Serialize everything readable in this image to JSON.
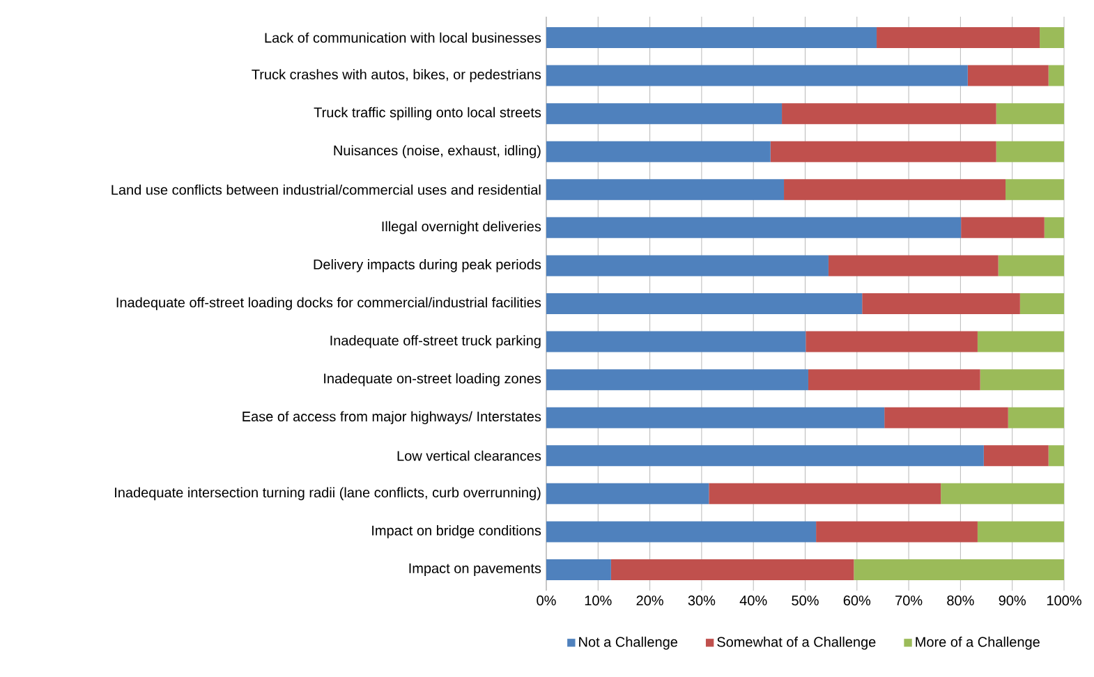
{
  "chart_data": {
    "type": "bar",
    "orientation": "horizontal",
    "stacked": true,
    "categories": [
      "Lack of communication with local businesses",
      "Truck crashes with autos, bikes, or pedestrians",
      "Truck traffic spilling onto local streets",
      "Nuisances (noise, exhaust, idling)",
      "Land use conflicts between industrial/commercial uses and residential",
      "Illegal overnight deliveries",
      "Delivery impacts during peak periods",
      "Inadequate off-street loading docks for commercial/industrial facilities",
      "Inadequate off-street truck parking",
      "Inadequate on-street loading zones",
      "Ease of access from major highways/ Interstates",
      "Low vertical clearances",
      "Inadequate intersection turning radii (lane conflicts, curb overrunning)",
      "Impact on bridge conditions",
      "Impact on pavements"
    ],
    "series": [
      {
        "name": "Not a Challenge",
        "color": "#4f81bd",
        "values": [
          63.8,
          81.4,
          45.5,
          43.3,
          45.9,
          80.1,
          54.5,
          61.0,
          50.1,
          50.6,
          65.3,
          84.5,
          31.4,
          52.1,
          12.5
        ]
      },
      {
        "name": "Somewhat of a Challenge",
        "color": "#c0504d",
        "values": [
          31.5,
          15.6,
          41.4,
          43.6,
          42.8,
          16.1,
          32.8,
          30.5,
          33.2,
          33.2,
          23.9,
          12.5,
          44.8,
          31.2,
          46.9
        ]
      },
      {
        "name": "More of a Challenge",
        "color": "#9bbb59",
        "values": [
          4.7,
          3.0,
          13.1,
          13.1,
          11.3,
          3.8,
          12.7,
          8.5,
          16.7,
          16.2,
          10.8,
          3.0,
          23.8,
          16.7,
          40.6
        ]
      }
    ],
    "xlim": [
      0,
      100
    ],
    "xticks": [
      {
        "value": 0,
        "label": "0%"
      },
      {
        "value": 10,
        "label": "10%"
      },
      {
        "value": 20,
        "label": "20%"
      },
      {
        "value": 30,
        "label": "30%"
      },
      {
        "value": 40,
        "label": "40%"
      },
      {
        "value": 50,
        "label": "50%"
      },
      {
        "value": 60,
        "label": "60%"
      },
      {
        "value": 70,
        "label": "70%"
      },
      {
        "value": 80,
        "label": "80%"
      },
      {
        "value": 90,
        "label": "90%"
      },
      {
        "value": 100,
        "label": "100%"
      }
    ],
    "grid": "x",
    "legend": "bottom"
  }
}
